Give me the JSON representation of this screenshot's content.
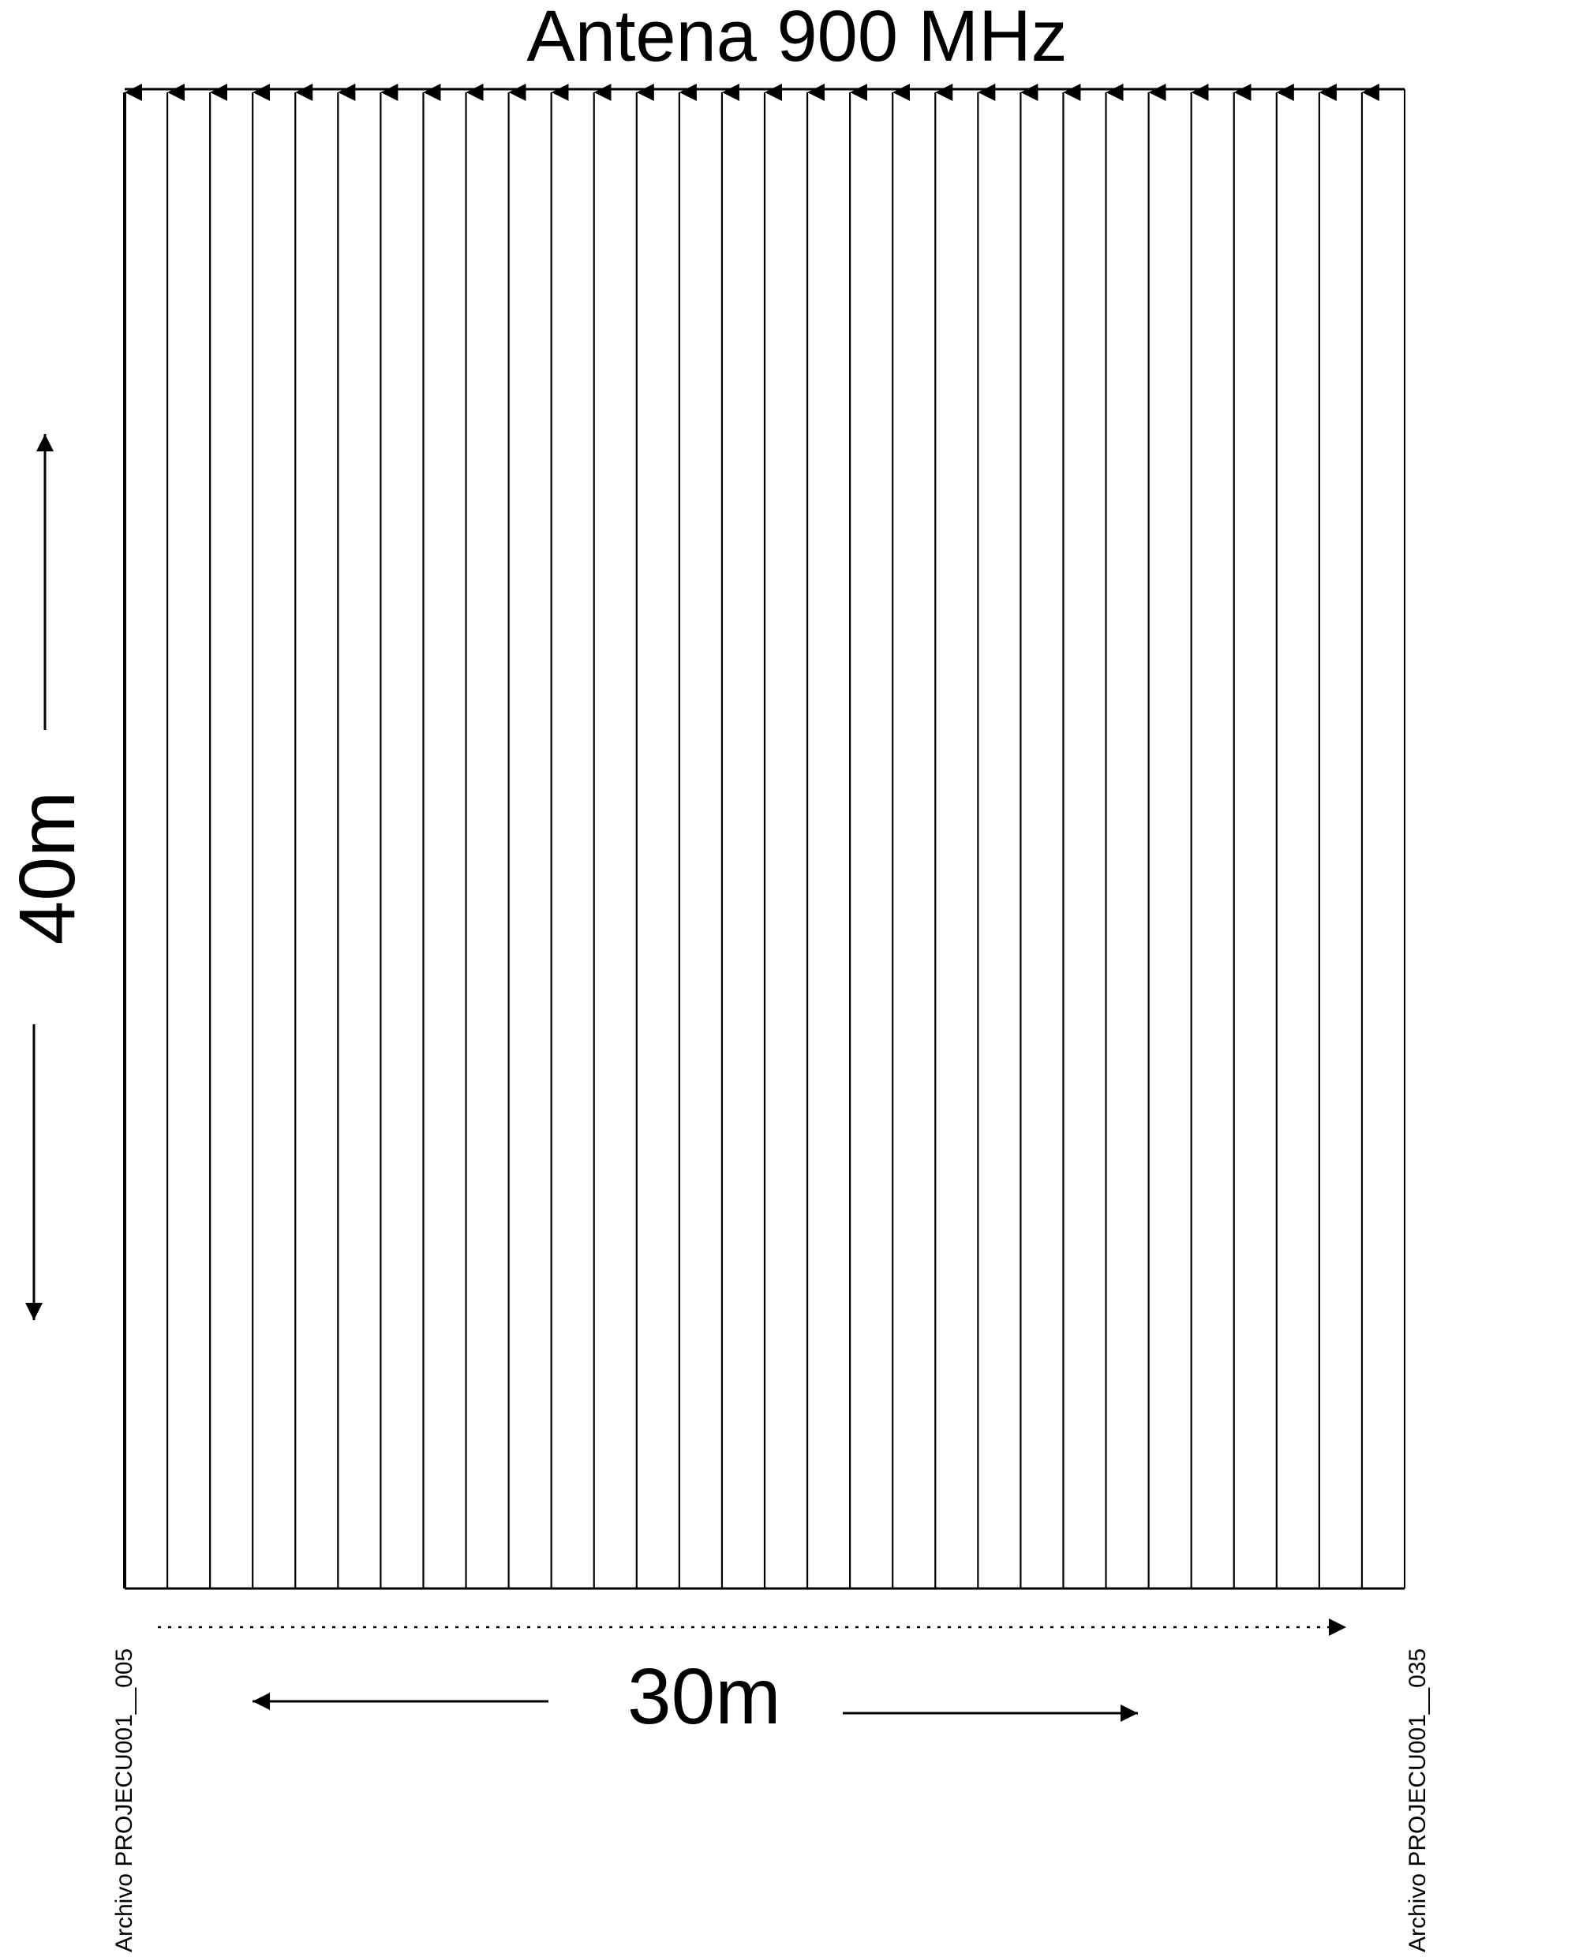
{
  "title": "Antena 900 MHz",
  "dimensions": {
    "width_label": "30m",
    "height_label": "40m"
  },
  "files": {
    "start": "Archivo PROJECU001__005",
    "end": "Archivo PROJECU001__035"
  },
  "profiles": {
    "count": 30,
    "direction": "up"
  },
  "colors": {
    "line": "#000000",
    "background": "#ffffff"
  }
}
